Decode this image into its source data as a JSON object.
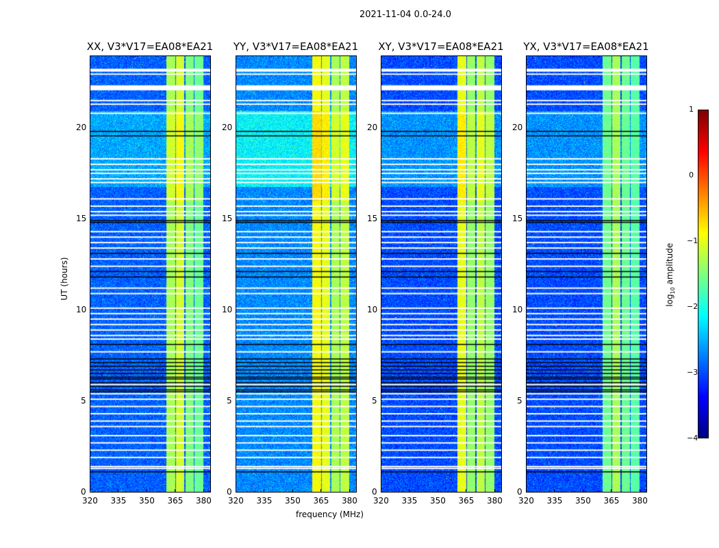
{
  "suptitle": "2021-11-04 0.0-24.0",
  "chart_data": {
    "type": "heatmap",
    "panels": [
      {
        "title": "XX, V3*V17=EA08*EA21",
        "bands": [
          [
            360.5,
            365,
            -1.3
          ],
          [
            365.5,
            370,
            -1.1
          ],
          [
            370.5,
            375,
            -1.5
          ],
          [
            375.5,
            380,
            -1.6
          ]
        ],
        "base": -2.9
      },
      {
        "title": "YY, V3*V17=EA08*EA21",
        "bands": [
          [
            360.5,
            365,
            -0.9
          ],
          [
            365.5,
            370,
            -1.0
          ],
          [
            370.5,
            375,
            -1.3
          ],
          [
            375.5,
            380,
            -1.2
          ]
        ],
        "base": -2.7
      },
      {
        "title": "XY, V3*V17=EA08*EA21",
        "bands": [
          [
            360.5,
            365,
            -1.0
          ],
          [
            365.5,
            370,
            -1.4
          ],
          [
            370.5,
            375,
            -1.2
          ],
          [
            375.5,
            380,
            -1.4
          ]
        ],
        "base": -3.0
      },
      {
        "title": "YX, V3*V17=EA08*EA21",
        "bands": [
          [
            360.5,
            365,
            -1.6
          ],
          [
            365.5,
            370,
            -1.3
          ],
          [
            370.5,
            375,
            -1.6
          ],
          [
            375.5,
            380,
            -1.7
          ]
        ],
        "base": -3.0
      }
    ],
    "xlabel": "frequency (MHz)",
    "ylabel": "UT (hours)",
    "xlim": [
      320,
      384
    ],
    "ylim": [
      0,
      24
    ],
    "xticks": [
      "320",
      "335",
      "350",
      "365",
      "380"
    ],
    "yticks": [
      "0",
      "5",
      "10",
      "15",
      "20"
    ],
    "flagged_hours_white": [
      23.3,
      23.05,
      22.2,
      22.25,
      21.6,
      21.4,
      20.9,
      18.4,
      18.1,
      17.8,
      17.6,
      17.3,
      17.1,
      16.2,
      15.8,
      15.5,
      15.3,
      14.4,
      14.1,
      13.8,
      13.5,
      12.9,
      12.5,
      11.3,
      11.0,
      10.2,
      9.9,
      9.6,
      9.3,
      9.0,
      8.7,
      8.5,
      7.8,
      6.0,
      5.5,
      5.2,
      4.8,
      4.4,
      4.0,
      3.7,
      3.2,
      2.8,
      2.4,
      2.0,
      1.5,
      1.4
    ],
    "flagged_hours_black": [
      19.9,
      19.65,
      15.0,
      14.9,
      13.2,
      12.2,
      11.9,
      8.2,
      7.4,
      7.2,
      7.0,
      6.8,
      6.6,
      6.4,
      6.3,
      6.1,
      5.9,
      5.7,
      5.6,
      1.2
    ],
    "colorbar": {
      "label": "log10 amplitude",
      "label_main": "log",
      "label_sub": "10",
      "label_tail": " amplitude",
      "range": [
        -4,
        1
      ],
      "ticks": [
        "1",
        "0",
        "−1",
        "−2",
        "−3",
        "−4"
      ]
    }
  }
}
